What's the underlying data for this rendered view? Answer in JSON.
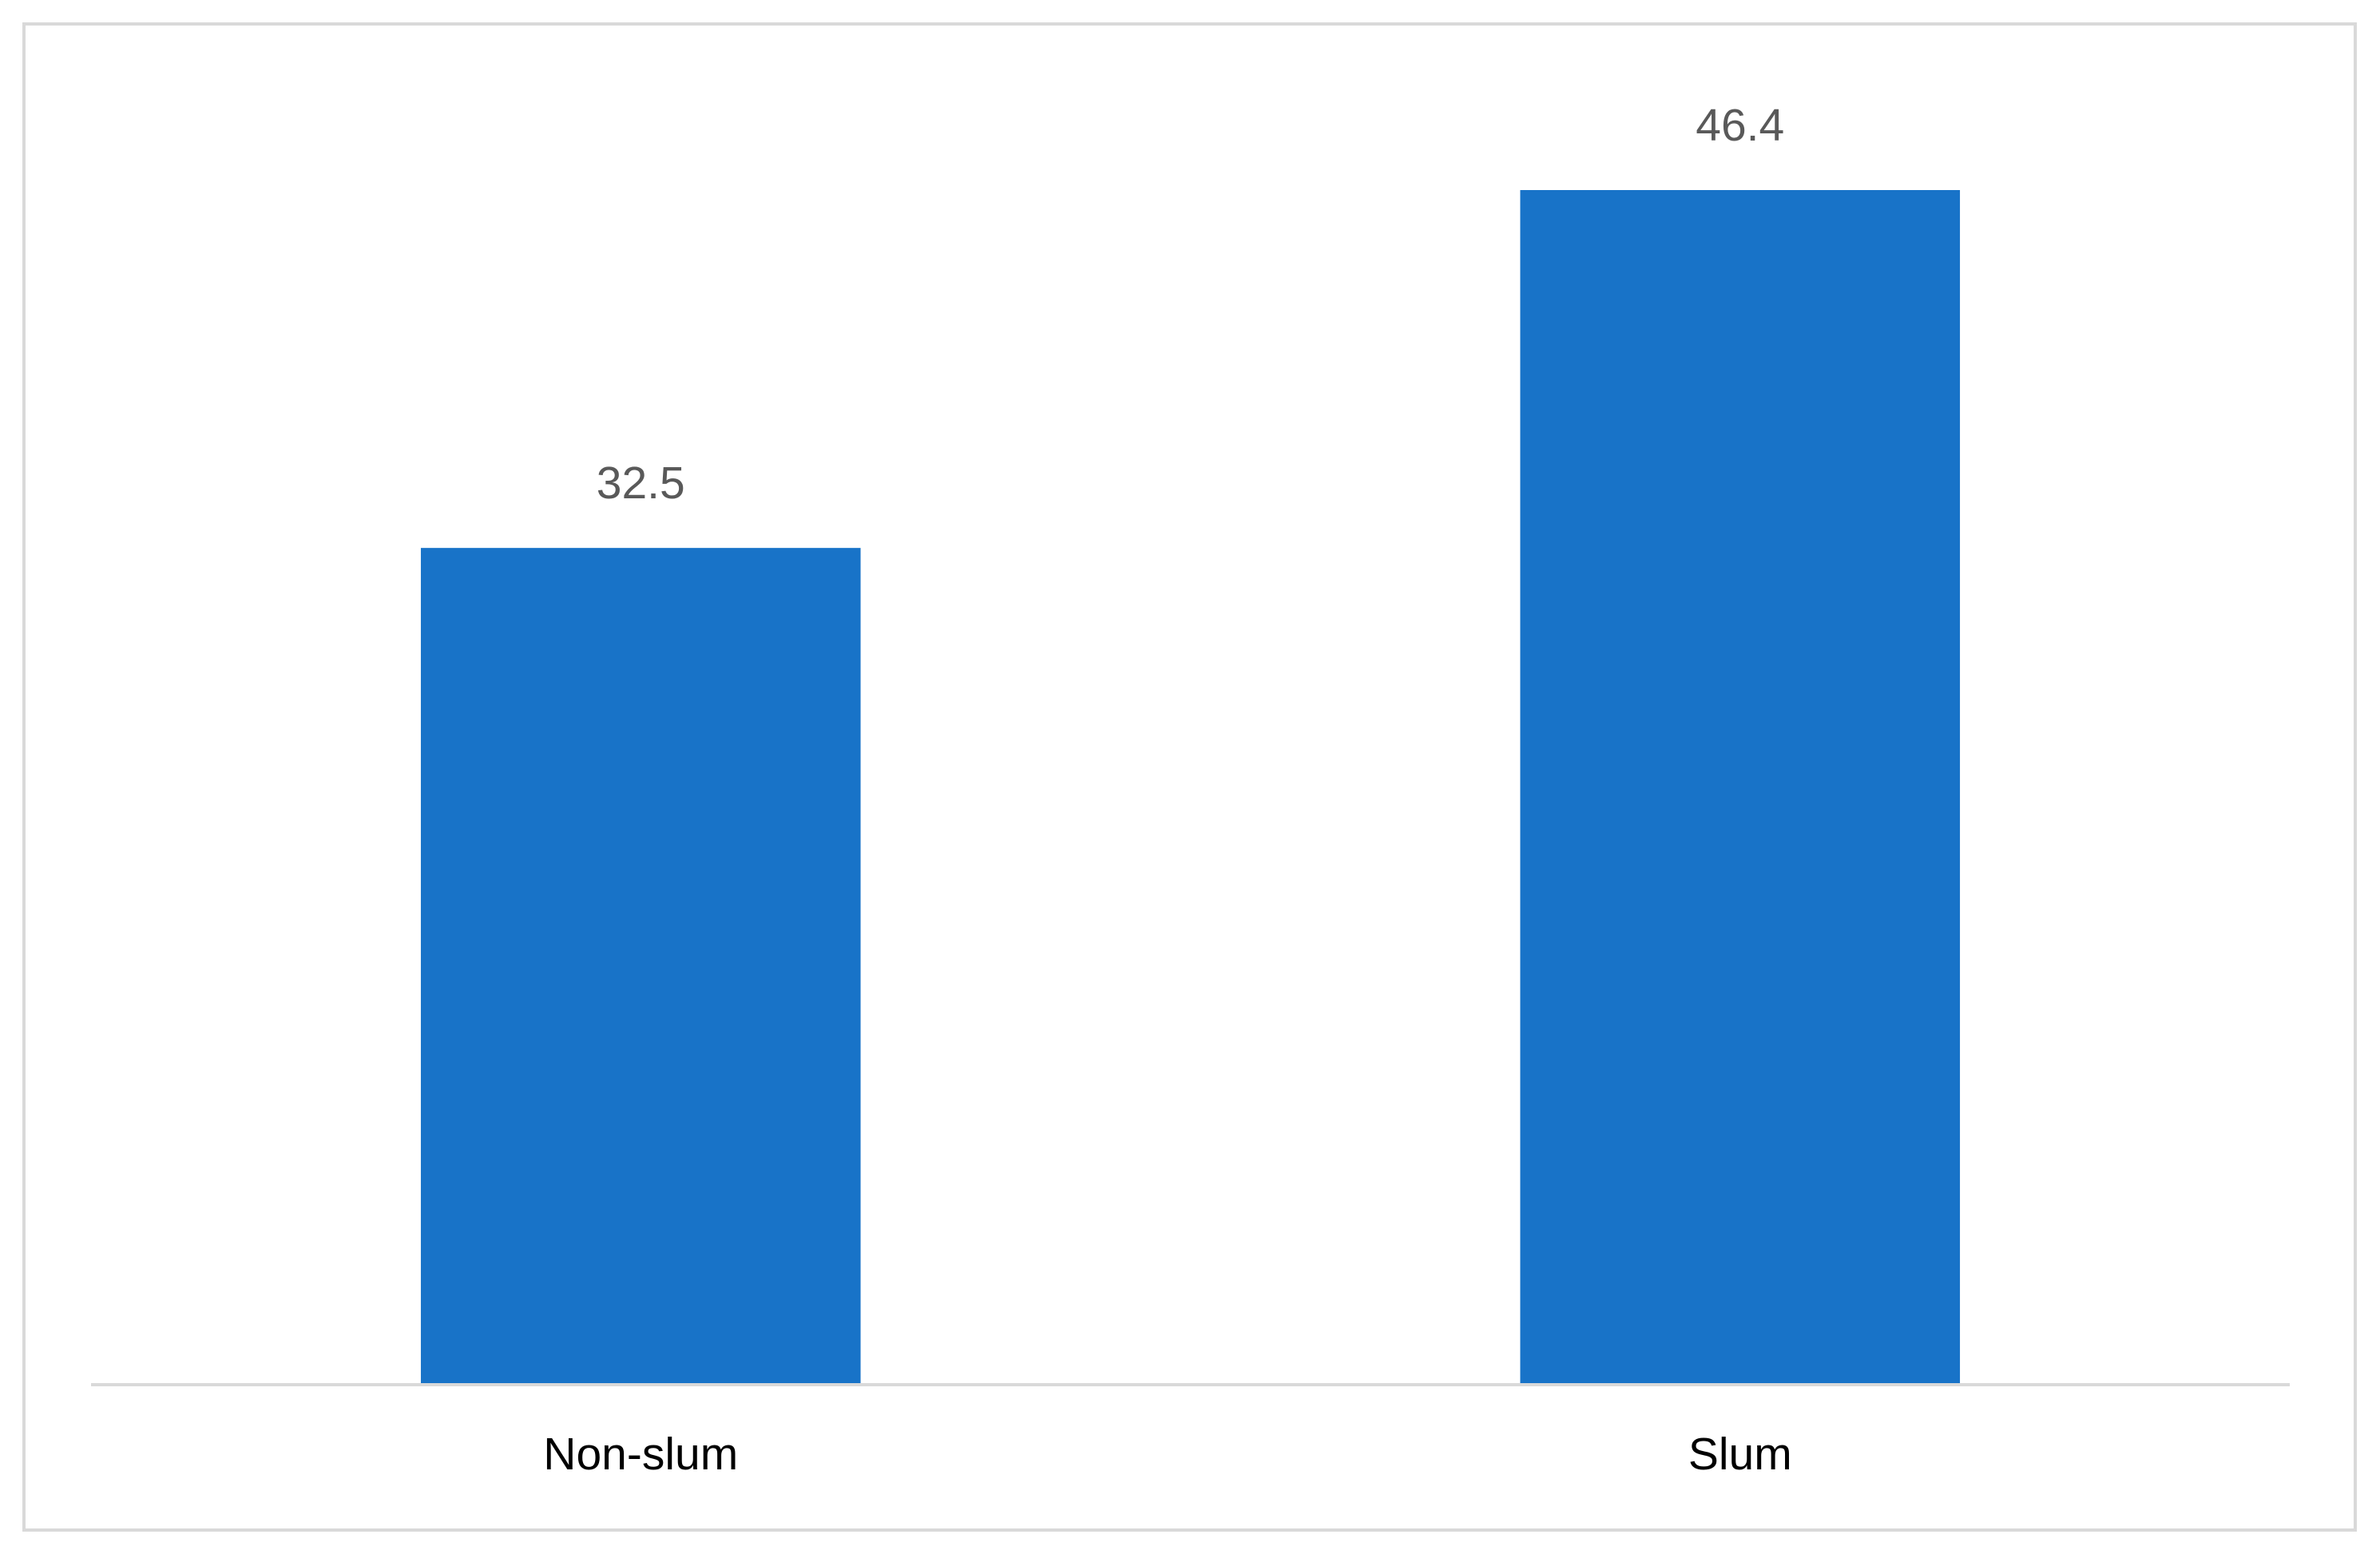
{
  "chart_data": {
    "type": "bar",
    "categories": [
      "Non-slum",
      "Slum"
    ],
    "values": [
      32.5,
      46.4
    ],
    "color": "#1873c8"
  }
}
